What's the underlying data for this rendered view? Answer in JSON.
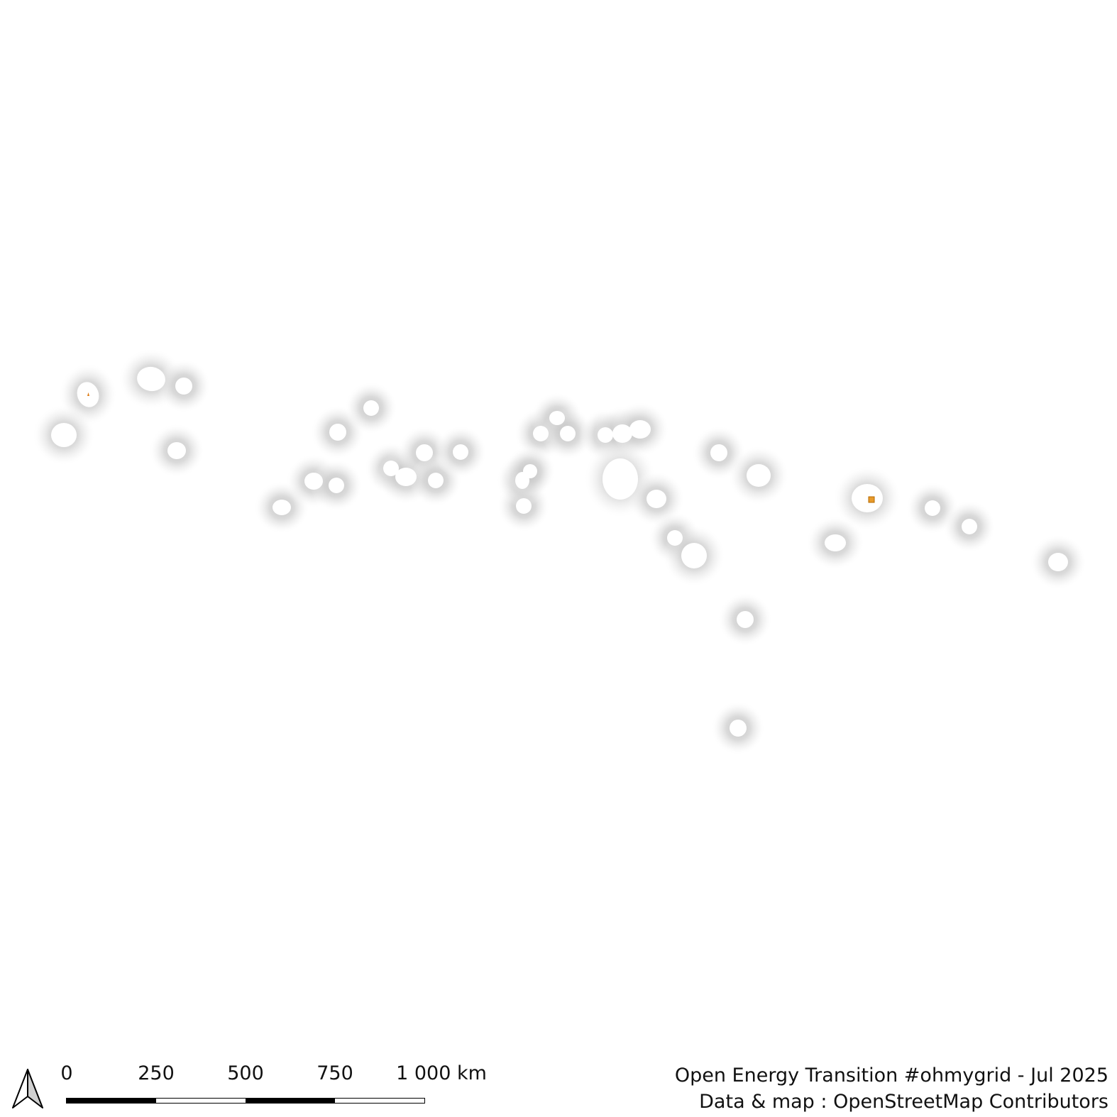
{
  "map": {
    "background": "#ffffff",
    "halo_color": "#c8c8c8",
    "blob_color": "#ffffff",
    "accent_color": "#e07a10",
    "features": [
      {
        "name": "site-01"
      },
      {
        "name": "site-02"
      },
      {
        "name": "site-03"
      },
      {
        "name": "site-04"
      },
      {
        "name": "site-05"
      },
      {
        "name": "site-06"
      },
      {
        "name": "site-07"
      },
      {
        "name": "site-08"
      },
      {
        "name": "site-09"
      },
      {
        "name": "site-10"
      },
      {
        "name": "site-11"
      },
      {
        "name": "site-12"
      },
      {
        "name": "site-13"
      },
      {
        "name": "site-14"
      },
      {
        "name": "site-15"
      },
      {
        "name": "site-16"
      },
      {
        "name": "site-17"
      },
      {
        "name": "site-18"
      },
      {
        "name": "site-19"
      },
      {
        "name": "site-20"
      },
      {
        "name": "site-21"
      },
      {
        "name": "site-22"
      },
      {
        "name": "site-23"
      },
      {
        "name": "site-24"
      },
      {
        "name": "site-25"
      },
      {
        "name": "site-26"
      },
      {
        "name": "site-27"
      },
      {
        "name": "site-28"
      },
      {
        "name": "site-29"
      },
      {
        "name": "site-30"
      },
      {
        "name": "site-31"
      },
      {
        "name": "site-32"
      },
      {
        "name": "site-33"
      },
      {
        "name": "site-34"
      },
      {
        "name": "site-35"
      }
    ],
    "north_arrow_icon": "north-arrow-icon"
  },
  "scalebar": {
    "labels": [
      "0",
      "250",
      "500",
      "750",
      "1 000 km"
    ],
    "segments": [
      "dark",
      "light",
      "dark",
      "light"
    ]
  },
  "credits": {
    "line1": "Open Energy Transition #ohmygrid - Jul 2025",
    "line2": "Data & map : OpenStreetMap Contributors"
  }
}
